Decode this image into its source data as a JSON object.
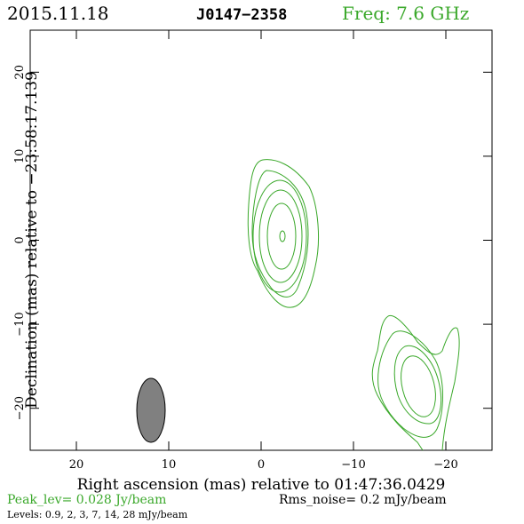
{
  "header": {
    "date": "2015.11.18",
    "source": "J0147−2358",
    "freq": "Freq: 7.6 GHz"
  },
  "axes": {
    "xlabel": "Right ascension (mas) relative to 01:47:36.0429",
    "ylabel": "Declination (mas) relative to −23:58:17.139",
    "xticks": [
      {
        "value": 20,
        "label": "20"
      },
      {
        "value": 10,
        "label": "10"
      },
      {
        "value": 0,
        "label": "0"
      },
      {
        "value": -10,
        "label": "−10"
      },
      {
        "value": -20,
        "label": "−20"
      }
    ],
    "yticks": [
      {
        "value": 20,
        "label": "20"
      },
      {
        "value": 10,
        "label": "10"
      },
      {
        "value": 0,
        "label": "0"
      },
      {
        "value": -10,
        "label": "−10"
      },
      {
        "value": -20,
        "label": "−20"
      }
    ],
    "xlim": [
      25,
      -25
    ],
    "ylim": [
      -25,
      25
    ]
  },
  "footer": {
    "peak": "Peak_lev=  0.028 Jy/beam",
    "rms": "Rms_noise=   0.2 mJy/beam",
    "levels": "Levels: 0.9,   2,   3,   7,   14,   28 mJy/beam"
  },
  "colors": {
    "contour": "#3aa82a",
    "beam": "#808080",
    "text": "#000000",
    "accent": "#3aa82a"
  }
}
